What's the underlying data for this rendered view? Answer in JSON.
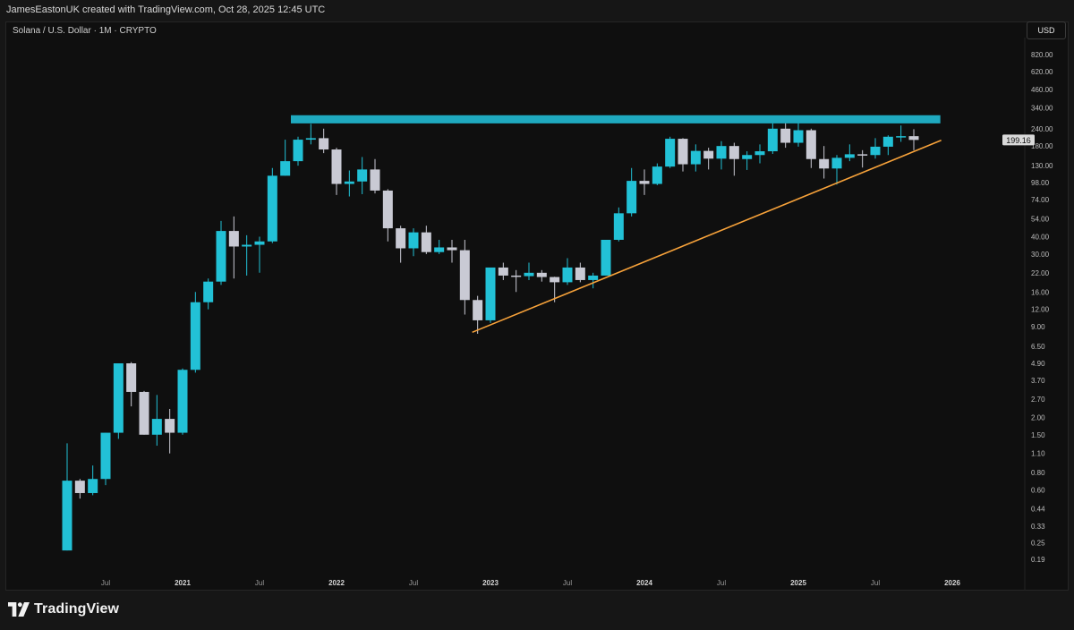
{
  "header": {
    "attribution": "JamesEastonUK created with TradingView.com, Oct 28, 2025 12:45 UTC"
  },
  "symbol": {
    "title": "Solana / U.S. Dollar · 1M · CRYPTO",
    "currency_button": "USD"
  },
  "brand": {
    "name": "TradingView"
  },
  "colors": {
    "up": "#22c1d6",
    "down": "#c9cad4",
    "resistance_zone": "#1fa9bf",
    "trendline": "#f7a23a",
    "price_label_bg": "#d9d9d9"
  },
  "chart_data": {
    "type": "candlestick",
    "scale": "log",
    "timeframe": "1M",
    "current_price": "199.16",
    "y_ticks": [
      "820.00",
      "620.00",
      "460.00",
      "340.00",
      "240.00",
      "180.00",
      "130.00",
      "98.00",
      "74.00",
      "54.00",
      "40.00",
      "30.00",
      "22.00",
      "16.00",
      "12.00",
      "9.00",
      "6.50",
      "4.90",
      "3.70",
      "2.70",
      "2.00",
      "1.50",
      "1.10",
      "0.80",
      "0.60",
      "0.44",
      "0.33",
      "0.25",
      "0.19"
    ],
    "x_ticks": [
      {
        "label": "Jul",
        "date": "2020-07",
        "major": false
      },
      {
        "label": "2021",
        "date": "2021-01",
        "major": true
      },
      {
        "label": "Jul",
        "date": "2021-07",
        "major": false
      },
      {
        "label": "2022",
        "date": "2022-01",
        "major": true
      },
      {
        "label": "Jul",
        "date": "2022-07",
        "major": false
      },
      {
        "label": "2023",
        "date": "2023-01",
        "major": true
      },
      {
        "label": "Jul",
        "date": "2023-07",
        "major": false
      },
      {
        "label": "2024",
        "date": "2024-01",
        "major": true
      },
      {
        "label": "Jul",
        "date": "2024-07",
        "major": false
      },
      {
        "label": "2025",
        "date": "2025-01",
        "major": true
      },
      {
        "label": "Jul",
        "date": "2025-07",
        "major": false
      },
      {
        "label": "2026",
        "date": "2026-01",
        "major": true
      }
    ],
    "candles": [
      {
        "date": "2020-04",
        "o": 0.22,
        "h": 1.3,
        "l": 0.22,
        "c": 0.7
      },
      {
        "date": "2020-05",
        "o": 0.7,
        "h": 0.72,
        "l": 0.52,
        "c": 0.57
      },
      {
        "date": "2020-06",
        "o": 0.57,
        "h": 0.9,
        "l": 0.55,
        "c": 0.72
      },
      {
        "date": "2020-07",
        "o": 0.72,
        "h": 1.55,
        "l": 0.65,
        "c": 1.55
      },
      {
        "date": "2020-08",
        "o": 1.55,
        "h": 4.9,
        "l": 1.4,
        "c": 4.9
      },
      {
        "date": "2020-09",
        "o": 4.9,
        "h": 5.0,
        "l": 2.4,
        "c": 3.05
      },
      {
        "date": "2020-10",
        "o": 3.05,
        "h": 3.1,
        "l": 1.5,
        "c": 1.5
      },
      {
        "date": "2020-11",
        "o": 1.5,
        "h": 2.9,
        "l": 1.25,
        "c": 1.95
      },
      {
        "date": "2020-12",
        "o": 1.95,
        "h": 2.3,
        "l": 1.1,
        "c": 1.55
      },
      {
        "date": "2021-01",
        "o": 1.55,
        "h": 4.5,
        "l": 1.5,
        "c": 4.4
      },
      {
        "date": "2021-02",
        "o": 4.4,
        "h": 16.0,
        "l": 4.2,
        "c": 13.5
      },
      {
        "date": "2021-03",
        "o": 13.5,
        "h": 20.0,
        "l": 12.0,
        "c": 19.0
      },
      {
        "date": "2021-04",
        "o": 19.0,
        "h": 52.0,
        "l": 18.0,
        "c": 44.0
      },
      {
        "date": "2021-05",
        "o": 44.0,
        "h": 56.0,
        "l": 20.0,
        "c": 34.0
      },
      {
        "date": "2021-06",
        "o": 34.0,
        "h": 41.0,
        "l": 21.0,
        "c": 35.0
      },
      {
        "date": "2021-07",
        "o": 35.0,
        "h": 40.0,
        "l": 22.0,
        "c": 37.0
      },
      {
        "date": "2021-08",
        "o": 37.0,
        "h": 125.0,
        "l": 36.0,
        "c": 110.0
      },
      {
        "date": "2021-09",
        "o": 110.0,
        "h": 200.0,
        "l": 110.0,
        "c": 140.0
      },
      {
        "date": "2021-10",
        "o": 140.0,
        "h": 210.0,
        "l": 130.0,
        "c": 200.0
      },
      {
        "date": "2021-11",
        "o": 200.0,
        "h": 260.0,
        "l": 185.0,
        "c": 205.0
      },
      {
        "date": "2021-12",
        "o": 205.0,
        "h": 240.0,
        "l": 160.0,
        "c": 170.0
      },
      {
        "date": "2022-01",
        "o": 170.0,
        "h": 175.0,
        "l": 80.0,
        "c": 96.0
      },
      {
        "date": "2022-02",
        "o": 96.0,
        "h": 120.0,
        "l": 78.0,
        "c": 100.0
      },
      {
        "date": "2022-03",
        "o": 100.0,
        "h": 150.0,
        "l": 81.0,
        "c": 122.0
      },
      {
        "date": "2022-04",
        "o": 122.0,
        "h": 145.0,
        "l": 82.0,
        "c": 86.0
      },
      {
        "date": "2022-05",
        "o": 86.0,
        "h": 88.0,
        "l": 37.0,
        "c": 46.0
      },
      {
        "date": "2022-06",
        "o": 46.0,
        "h": 48.0,
        "l": 26.0,
        "c": 33.0
      },
      {
        "date": "2022-07",
        "o": 33.0,
        "h": 46.0,
        "l": 29.0,
        "c": 43.0
      },
      {
        "date": "2022-08",
        "o": 43.0,
        "h": 48.0,
        "l": 30.0,
        "c": 31.0
      },
      {
        "date": "2022-09",
        "o": 31.0,
        "h": 38.0,
        "l": 30.0,
        "c": 33.5
      },
      {
        "date": "2022-10",
        "o": 33.5,
        "h": 38.0,
        "l": 26.0,
        "c": 32.0
      },
      {
        "date": "2022-11",
        "o": 32.0,
        "h": 38.0,
        "l": 11.0,
        "c": 14.0
      },
      {
        "date": "2022-12",
        "o": 14.0,
        "h": 15.0,
        "l": 8.0,
        "c": 10.0
      },
      {
        "date": "2023-01",
        "o": 10.0,
        "h": 24.0,
        "l": 9.6,
        "c": 24.0
      },
      {
        "date": "2023-02",
        "o": 24.0,
        "h": 26.0,
        "l": 19.5,
        "c": 21.0
      },
      {
        "date": "2023-03",
        "o": 21.0,
        "h": 23.0,
        "l": 16.0,
        "c": 20.8
      },
      {
        "date": "2023-04",
        "o": 20.8,
        "h": 26.0,
        "l": 19.5,
        "c": 22.0
      },
      {
        "date": "2023-05",
        "o": 22.0,
        "h": 23.0,
        "l": 19.0,
        "c": 20.5
      },
      {
        "date": "2023-06",
        "o": 20.5,
        "h": 20.6,
        "l": 13.5,
        "c": 18.8
      },
      {
        "date": "2023-07",
        "o": 18.8,
        "h": 28.0,
        "l": 18.0,
        "c": 24.0
      },
      {
        "date": "2023-08",
        "o": 24.0,
        "h": 26.0,
        "l": 18.8,
        "c": 19.5
      },
      {
        "date": "2023-09",
        "o": 19.5,
        "h": 22.0,
        "l": 17.0,
        "c": 21.0
      },
      {
        "date": "2023-10",
        "o": 21.0,
        "h": 38.0,
        "l": 21.0,
        "c": 38.0
      },
      {
        "date": "2023-11",
        "o": 38.0,
        "h": 65.0,
        "l": 37.0,
        "c": 59.0
      },
      {
        "date": "2023-12",
        "o": 59.0,
        "h": 125.0,
        "l": 56.0,
        "c": 101.0
      },
      {
        "date": "2024-01",
        "o": 101.0,
        "h": 122.0,
        "l": 80.0,
        "c": 96.0
      },
      {
        "date": "2024-02",
        "o": 96.0,
        "h": 135.0,
        "l": 94.0,
        "c": 128.0
      },
      {
        "date": "2024-03",
        "o": 128.0,
        "h": 210.0,
        "l": 125.0,
        "c": 203.0
      },
      {
        "date": "2024-04",
        "o": 203.0,
        "h": 205.0,
        "l": 118.0,
        "c": 133.0
      },
      {
        "date": "2024-05",
        "o": 133.0,
        "h": 185.0,
        "l": 118.0,
        "c": 166.0
      },
      {
        "date": "2024-06",
        "o": 166.0,
        "h": 175.0,
        "l": 122.0,
        "c": 146.0
      },
      {
        "date": "2024-07",
        "o": 146.0,
        "h": 195.0,
        "l": 122.0,
        "c": 180.0
      },
      {
        "date": "2024-08",
        "o": 180.0,
        "h": 190.0,
        "l": 110.0,
        "c": 145.0
      },
      {
        "date": "2024-09",
        "o": 145.0,
        "h": 165.0,
        "l": 121.0,
        "c": 155.0
      },
      {
        "date": "2024-10",
        "o": 155.0,
        "h": 185.0,
        "l": 135.0,
        "c": 165.0
      },
      {
        "date": "2024-11",
        "o": 165.0,
        "h": 263.0,
        "l": 158.0,
        "c": 240.0
      },
      {
        "date": "2024-12",
        "o": 240.0,
        "h": 264.0,
        "l": 175.0,
        "c": 190.0
      },
      {
        "date": "2025-01",
        "o": 190.0,
        "h": 295.0,
        "l": 178.0,
        "c": 234.0
      },
      {
        "date": "2025-02",
        "o": 234.0,
        "h": 240.0,
        "l": 125.0,
        "c": 145.0
      },
      {
        "date": "2025-03",
        "o": 145.0,
        "h": 180.0,
        "l": 105.0,
        "c": 124.0
      },
      {
        "date": "2025-04",
        "o": 124.0,
        "h": 155.0,
        "l": 95.0,
        "c": 148.0
      },
      {
        "date": "2025-05",
        "o": 148.0,
        "h": 185.0,
        "l": 140.0,
        "c": 157.0
      },
      {
        "date": "2025-06",
        "o": 157.0,
        "h": 168.0,
        "l": 126.0,
        "c": 155.0
      },
      {
        "date": "2025-07",
        "o": 155.0,
        "h": 205.0,
        "l": 146.0,
        "c": 178.0
      },
      {
        "date": "2025-08",
        "o": 178.0,
        "h": 215.0,
        "l": 155.0,
        "c": 210.0
      },
      {
        "date": "2025-09",
        "o": 210.0,
        "h": 253.0,
        "l": 193.0,
        "c": 212.0
      },
      {
        "date": "2025-10",
        "o": 212.0,
        "h": 238.0,
        "l": 168.0,
        "c": 199.16
      }
    ],
    "resistance_zone": {
      "x_from": "2021-10",
      "x_to": "2025-12",
      "price_low": 262,
      "price_high": 300
    },
    "trendline": {
      "from": {
        "date": "2022-12",
        "price": 8.2
      },
      "to": {
        "date": "2025-12",
        "price": 198
      }
    }
  }
}
